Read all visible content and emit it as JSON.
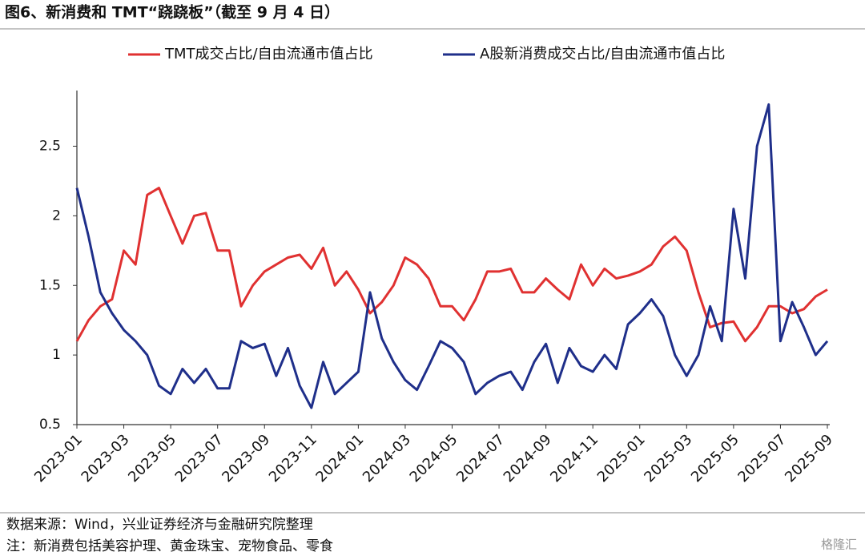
{
  "title": "图6、新消费和 TMT“跷跷板”（截至 9 月 4 日）",
  "chart_data": {
    "type": "line",
    "categories": [
      "2023-01",
      null,
      null,
      null,
      "2023-03",
      null,
      null,
      null,
      "2023-05",
      null,
      null,
      null,
      "2023-07",
      null,
      null,
      null,
      "2023-09",
      null,
      null,
      null,
      "2023-11",
      null,
      null,
      null,
      "2024-01",
      null,
      null,
      null,
      "2024-03",
      null,
      null,
      null,
      "2024-05",
      null,
      null,
      null,
      "2024-07",
      null,
      null,
      null,
      "2024-09",
      null,
      null,
      null,
      "2024-11",
      null,
      null,
      null,
      "2025-01",
      null,
      null,
      null,
      "2025-03",
      null,
      null,
      null,
      "2025-05",
      null,
      null,
      null,
      "2025-07",
      null,
      null,
      null,
      "2025-09"
    ],
    "series": [
      {
        "name": "TMT成交占比/自由流通市值占比",
        "color": "#e03131",
        "values": [
          1.1,
          1.25,
          1.35,
          1.4,
          1.75,
          1.65,
          2.15,
          2.2,
          2.0,
          1.8,
          2.0,
          2.02,
          1.75,
          1.75,
          1.35,
          1.5,
          1.6,
          1.65,
          1.7,
          1.72,
          1.62,
          1.77,
          1.5,
          1.6,
          1.47,
          1.3,
          1.38,
          1.5,
          1.7,
          1.65,
          1.55,
          1.35,
          1.35,
          1.25,
          1.4,
          1.6,
          1.6,
          1.62,
          1.45,
          1.45,
          1.55,
          1.47,
          1.4,
          1.65,
          1.5,
          1.62,
          1.55,
          1.57,
          1.6,
          1.65,
          1.78,
          1.85,
          1.75,
          1.45,
          1.2,
          1.23,
          1.24,
          1.1,
          1.2,
          1.35,
          1.35,
          1.3,
          1.33,
          1.42,
          1.47
        ]
      },
      {
        "name": "A股新消费成交占比/自由流通市值占比",
        "color": "#1f2f8a",
        "values": [
          2.2,
          1.85,
          1.45,
          1.3,
          1.18,
          1.1,
          1.0,
          0.78,
          0.72,
          0.9,
          0.8,
          0.9,
          0.76,
          0.76,
          1.1,
          1.05,
          1.08,
          0.85,
          1.05,
          0.78,
          0.62,
          0.95,
          0.72,
          0.8,
          0.88,
          1.45,
          1.12,
          0.95,
          0.82,
          0.75,
          0.92,
          1.1,
          1.05,
          0.95,
          0.72,
          0.8,
          0.85,
          0.88,
          0.75,
          0.95,
          1.08,
          0.8,
          1.05,
          0.92,
          0.88,
          1.0,
          0.9,
          1.22,
          1.3,
          1.4,
          1.28,
          1.0,
          0.85,
          1.0,
          1.35,
          1.1,
          2.05,
          1.55,
          2.5,
          2.8,
          1.1,
          1.38,
          1.2,
          1.0,
          1.1
        ]
      }
    ],
    "ylim": [
      0.5,
      2.9
    ],
    "yticks": [
      0.5,
      1,
      1.5,
      2,
      2.5
    ],
    "grid": false,
    "legend": "top"
  },
  "notes": [
    "数据来源：Wind，兴业证券经济与金融研究院整理",
    "注：新消费包括美容护理、黄金珠宝、宠物食品、零食"
  ],
  "watermark": "格隆汇"
}
